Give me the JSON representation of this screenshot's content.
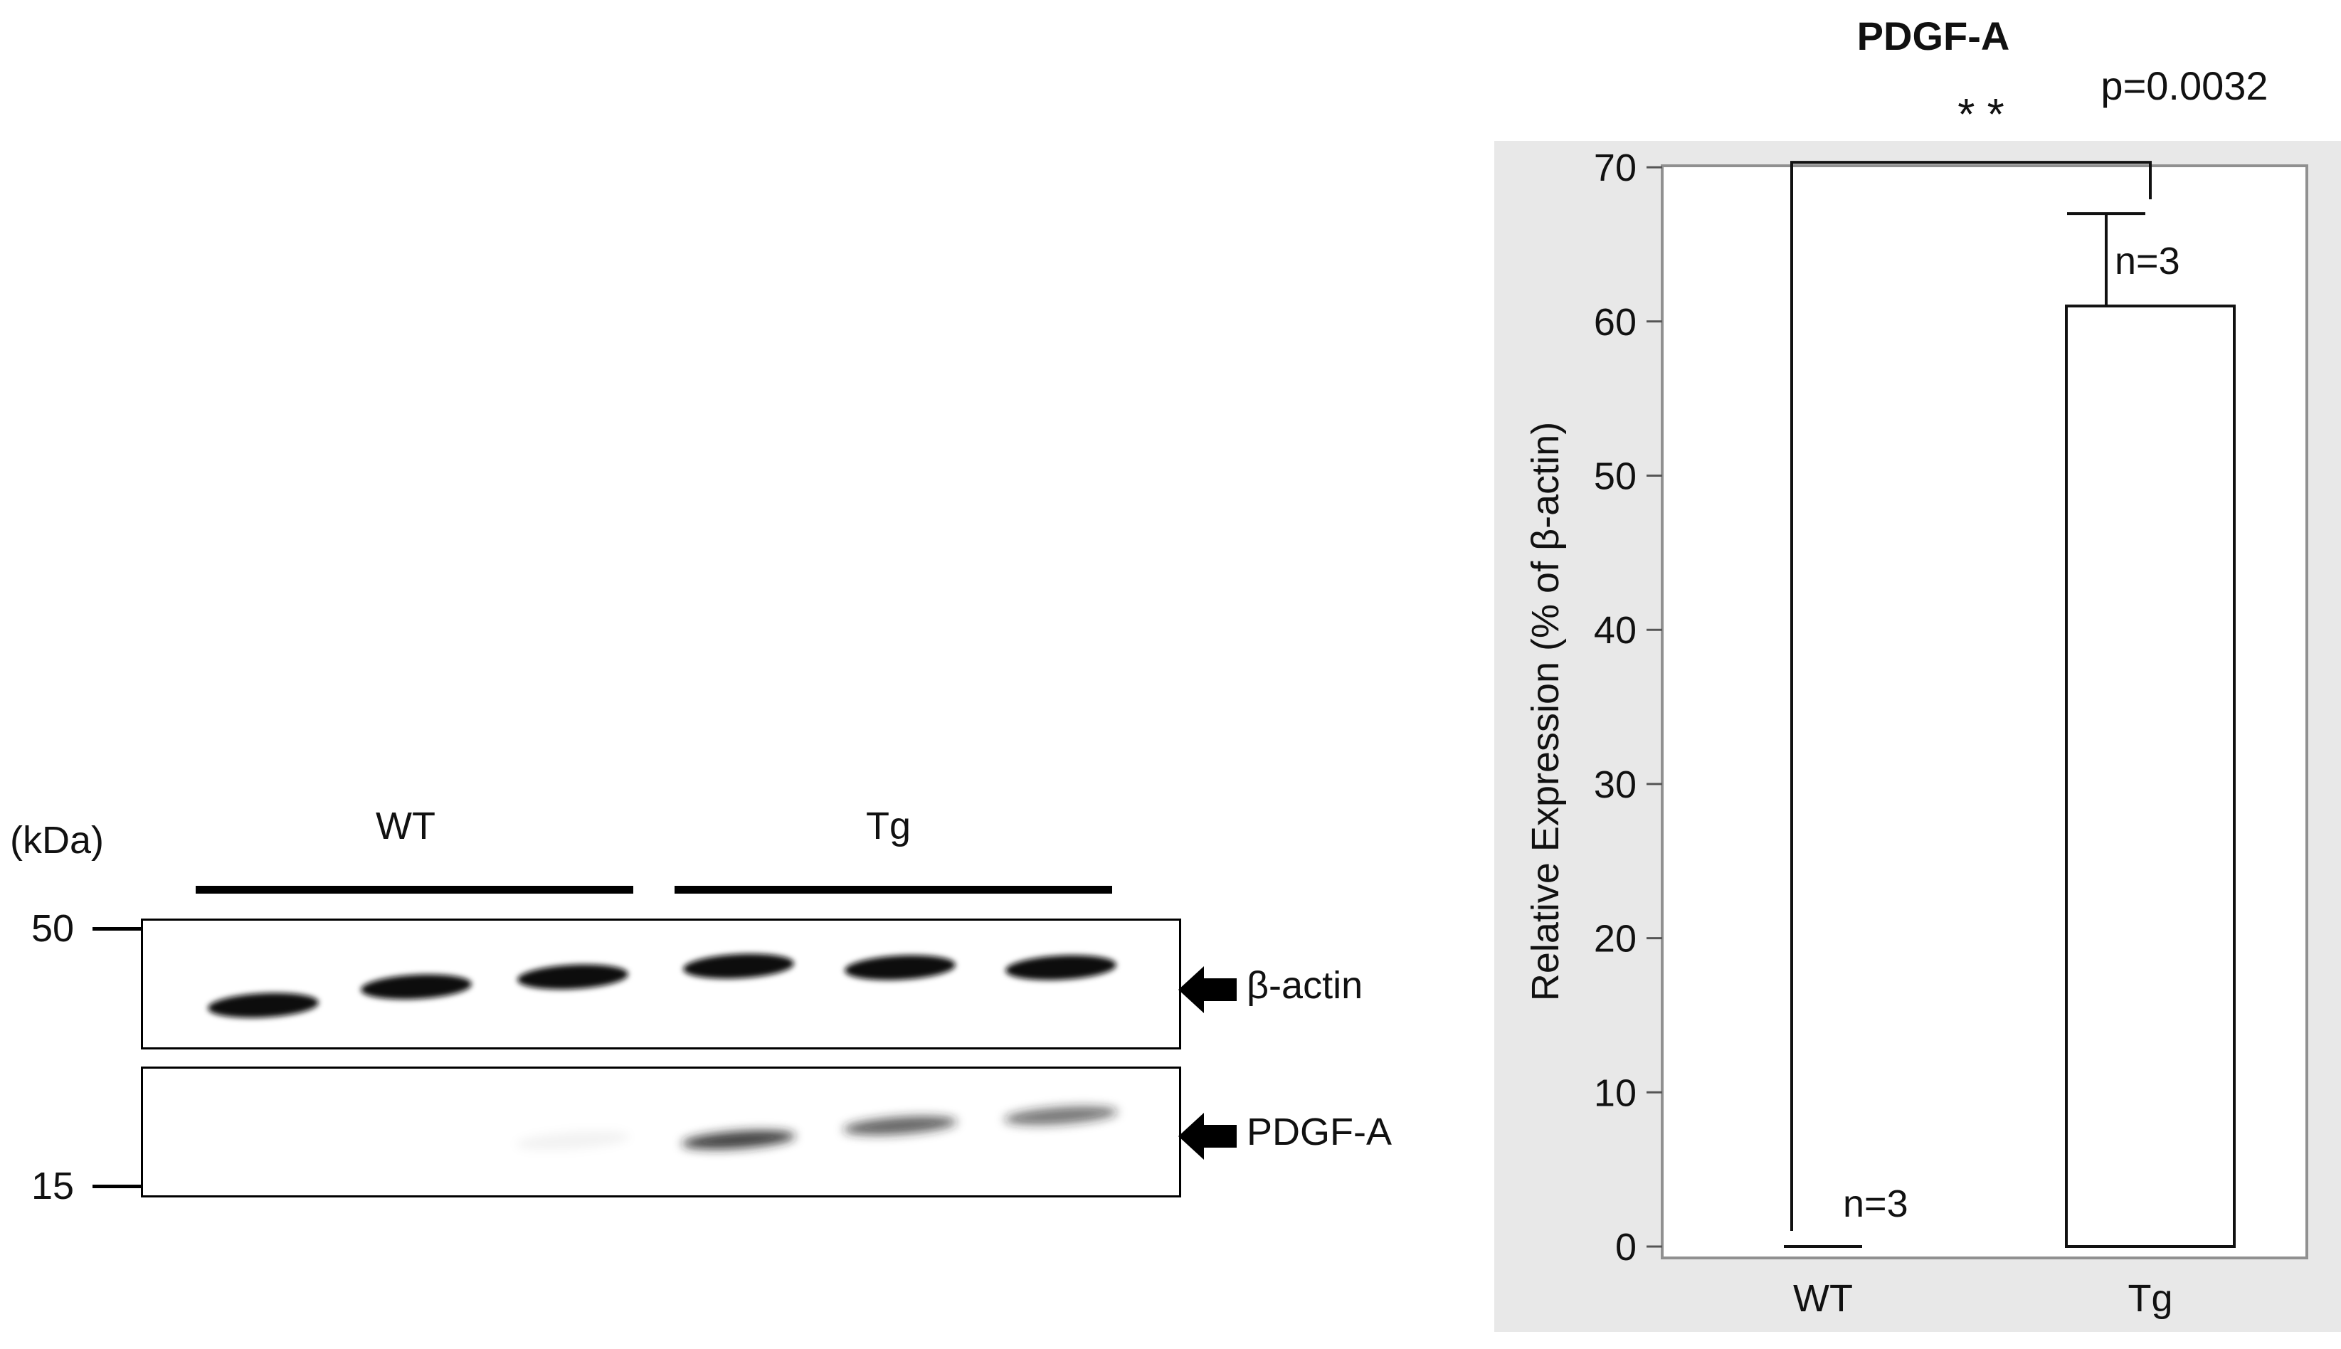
{
  "blot": {
    "kda_label": "(kDa)",
    "groups": [
      "WT",
      "Tg"
    ],
    "markers": [
      "50",
      "15"
    ],
    "bands": [
      "β-actin",
      "PDGF-A"
    ],
    "actin_intensity": [
      1,
      1,
      1,
      1,
      1,
      1
    ],
    "pdgfa_intensity": [
      0,
      0,
      0.05,
      0.85,
      0.7,
      0.6
    ]
  },
  "chart_data": {
    "type": "bar",
    "title": "PDGF-A",
    "categories": [
      "WT",
      "Tg"
    ],
    "values": [
      0,
      61
    ],
    "errors": [
      0,
      6
    ],
    "n_labels": [
      "n=3",
      "n=3"
    ],
    "ylabel": "Relative Expression (% of β-actin)",
    "xlabel": "",
    "ylim": [
      0,
      70
    ],
    "yticks": [
      "0",
      "10",
      "20",
      "30",
      "40",
      "50",
      "60",
      "70"
    ],
    "significance": "* *",
    "p_value": "p=0.0032",
    "grid": false,
    "bar_fill": "#ffffff",
    "panel_background": "#e8e8e8"
  }
}
